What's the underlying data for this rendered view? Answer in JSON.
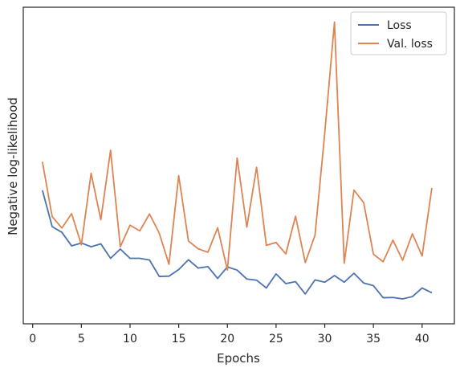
{
  "chart_data": {
    "type": "line",
    "title": "",
    "xlabel": "Epochs",
    "ylabel": "Negative log-likelihood",
    "xlim": [
      0,
      42.5
    ],
    "ylim": [
      0,
      100
    ],
    "x_ticks": [
      0,
      5,
      10,
      15,
      20,
      25,
      30,
      35,
      40
    ],
    "y_ticks": [],
    "grid": false,
    "legend_position": "top-right",
    "x": [
      1,
      2,
      3,
      4,
      5,
      6,
      7,
      8,
      9,
      10,
      11,
      12,
      13,
      14,
      15,
      16,
      17,
      18,
      19,
      20,
      21,
      22,
      23,
      24,
      25,
      26,
      27,
      28,
      29,
      30,
      31,
      32,
      33,
      34,
      35,
      36,
      37,
      38,
      39,
      40,
      41
    ],
    "series": [
      {
        "name": "Loss",
        "color": "#4c72b0",
        "values": [
          41.6,
          29.0,
          27.0,
          22.3,
          23.3,
          22.0,
          23.0,
          18.0,
          21.2,
          18.0,
          18.0,
          17.4,
          11.7,
          11.8,
          14.1,
          17.5,
          14.6,
          15.1,
          11.0,
          15.0,
          13.9,
          10.8,
          10.4,
          7.7,
          12.6,
          9.2,
          9.9,
          5.6,
          10.5,
          9.7,
          12.0,
          9.7,
          12.8,
          9.4,
          8.5,
          4.3,
          4.4,
          3.9,
          4.7,
          7.7,
          6.0
        ]
      },
      {
        "name": "Val. loss",
        "color": "#dd8452",
        "values": [
          51.5,
          32.5,
          28.5,
          33.5,
          22.7,
          47.5,
          31.4,
          55.5,
          22.0,
          29.5,
          27.5,
          33.4,
          26.7,
          15.9,
          46.7,
          24.0,
          21.3,
          20.1,
          28.6,
          13.9,
          52.8,
          28.8,
          49.6,
          22.5,
          23.5,
          19.5,
          32.6,
          16.5,
          26.0,
          61.4,
          100.0,
          16.3,
          41.7,
          37.3,
          19.4,
          16.8,
          24.3,
          17.3,
          26.5,
          18.8,
          42.4
        ]
      }
    ]
  }
}
